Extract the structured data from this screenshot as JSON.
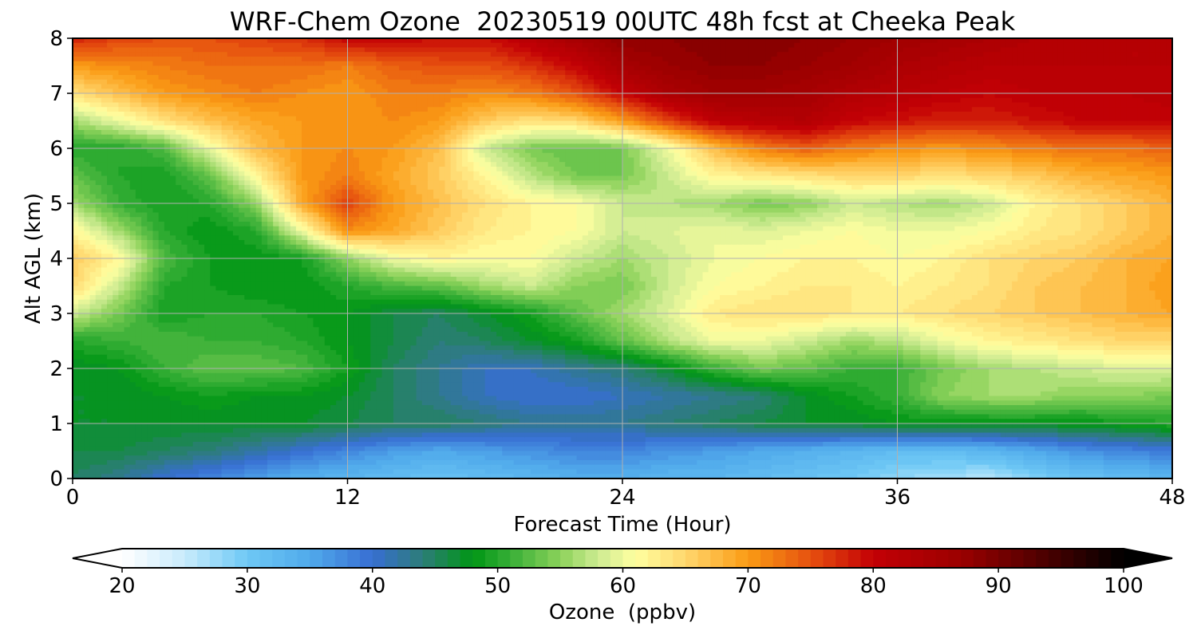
{
  "chart_data": {
    "type": "heatmap",
    "title": "WRF-Chem Ozone  20230519 00UTC 48h fcst at Cheeka Peak",
    "xlabel": "Forecast Time (Hour)",
    "ylabel": "Alt AGL (km)",
    "xlim": [
      0,
      48
    ],
    "ylim": [
      0,
      8
    ],
    "xticks": [
      0,
      12,
      24,
      36,
      48
    ],
    "yticks": [
      0,
      1,
      2,
      3,
      4,
      5,
      6,
      7,
      8
    ],
    "grid": true,
    "colorbar": {
      "label": "Ozone  (ppbv)",
      "min": 20,
      "max": 100,
      "step": 1,
      "ticks": [
        20,
        30,
        40,
        50,
        60,
        70,
        80,
        90,
        100
      ],
      "extend": "both",
      "orientation": "horizontal",
      "placement": "bottom"
    },
    "z_units": "ppbv",
    "x": [
      0,
      2,
      4,
      6,
      8,
      10,
      12,
      14,
      16,
      18,
      20,
      22,
      24,
      26,
      28,
      30,
      32,
      34,
      36,
      38,
      40,
      42,
      44,
      46,
      48
    ],
    "y": [
      0,
      0.5,
      1,
      1.5,
      2,
      2.5,
      3,
      3.5,
      4,
      4.5,
      5,
      5.5,
      6,
      6.5,
      7,
      7.5,
      8
    ],
    "z": [
      [
        45,
        43,
        40,
        38,
        36,
        34,
        33,
        32,
        31,
        32,
        33,
        34,
        34,
        33,
        33,
        32,
        31,
        30,
        28,
        27,
        26,
        29,
        31,
        32,
        33
      ],
      [
        46,
        46,
        45,
        44,
        42,
        40,
        38,
        36,
        35,
        36,
        37,
        38,
        38,
        37,
        36,
        35,
        34,
        33,
        32,
        32,
        33,
        35,
        37,
        38,
        39
      ],
      [
        47,
        47,
        47,
        47,
        47,
        47,
        46,
        45,
        45,
        44,
        43,
        43,
        43,
        44,
        45,
        46,
        47,
        47,
        48,
        48,
        48,
        48,
        48,
        49,
        50
      ],
      [
        47,
        47,
        48,
        49,
        48,
        48,
        47,
        45,
        43,
        41,
        40,
        40,
        41,
        42,
        43,
        44,
        47,
        49,
        51,
        55,
        56,
        56,
        55,
        55,
        54
      ],
      [
        47,
        48,
        51,
        53,
        53,
        52,
        49,
        45,
        43,
        41,
        41,
        43,
        44,
        47,
        51,
        54,
        53,
        51,
        51,
        54,
        56,
        57,
        58,
        59,
        59
      ],
      [
        50,
        51,
        52,
        51,
        51,
        50,
        48,
        46,
        44,
        45,
        47,
        49,
        53,
        57,
        60,
        60,
        58,
        56,
        57,
        60,
        62,
        63,
        64,
        65,
        65
      ],
      [
        58,
        54,
        49,
        50,
        50,
        49,
        48,
        46,
        45,
        47,
        49,
        53,
        56,
        59,
        63,
        64,
        64,
        63,
        63,
        64,
        65,
        66,
        67,
        68,
        69
      ],
      [
        65,
        58,
        50,
        49,
        48,
        48,
        50,
        52,
        53,
        56,
        58,
        55,
        54,
        58,
        61,
        62,
        63,
        63,
        62,
        63,
        64,
        66,
        67,
        68,
        70
      ],
      [
        66,
        62,
        52,
        49,
        48,
        49,
        55,
        60,
        62,
        61,
        61,
        58,
        56,
        58,
        60,
        61,
        62,
        62,
        61,
        62,
        64,
        65,
        66,
        68,
        69
      ],
      [
        62,
        56,
        50,
        48,
        50,
        60,
        71,
        69,
        66,
        63,
        62,
        61,
        58,
        59,
        60,
        59,
        60,
        61,
        60,
        60,
        61,
        63,
        64,
        66,
        68
      ],
      [
        56,
        51,
        49,
        50,
        55,
        69,
        76,
        70,
        67,
        64,
        62,
        61,
        58,
        57,
        56,
        54,
        55,
        58,
        57,
        56,
        58,
        62,
        64,
        66,
        68
      ],
      [
        53,
        50,
        49,
        53,
        62,
        70,
        72,
        69,
        66,
        62,
        57,
        54,
        54,
        58,
        62,
        63,
        64,
        65,
        65,
        64,
        65,
        66,
        68,
        69,
        70
      ],
      [
        50,
        50,
        52,
        60,
        67,
        70,
        71,
        70,
        67,
        58,
        54,
        53,
        54,
        60,
        67,
        72,
        74,
        72,
        71,
        70,
        71,
        72,
        73,
        73,
        74
      ],
      [
        56,
        60,
        64,
        67,
        69,
        70,
        70,
        71,
        70,
        66,
        64,
        65,
        70,
        76,
        81,
        82,
        83,
        80,
        79,
        78,
        78,
        79,
        80,
        80,
        80
      ],
      [
        64,
        67,
        70,
        71,
        72,
        71,
        70,
        72,
        72,
        71,
        72,
        75,
        80,
        84,
        86,
        86,
        85,
        83,
        82,
        81,
        80,
        81,
        81,
        81,
        82
      ],
      [
        70,
        71,
        72,
        73,
        73,
        73,
        72,
        74,
        75,
        75,
        77,
        80,
        85,
        87,
        88,
        88,
        87,
        86,
        84,
        83,
        82,
        82,
        82,
        82,
        82
      ],
      [
        78,
        76,
        75,
        75,
        76,
        77,
        80,
        80,
        79,
        79,
        82,
        85,
        88,
        88,
        89,
        89,
        88,
        87,
        86,
        85,
        84,
        83,
        83,
        82,
        82
      ]
    ]
  }
}
